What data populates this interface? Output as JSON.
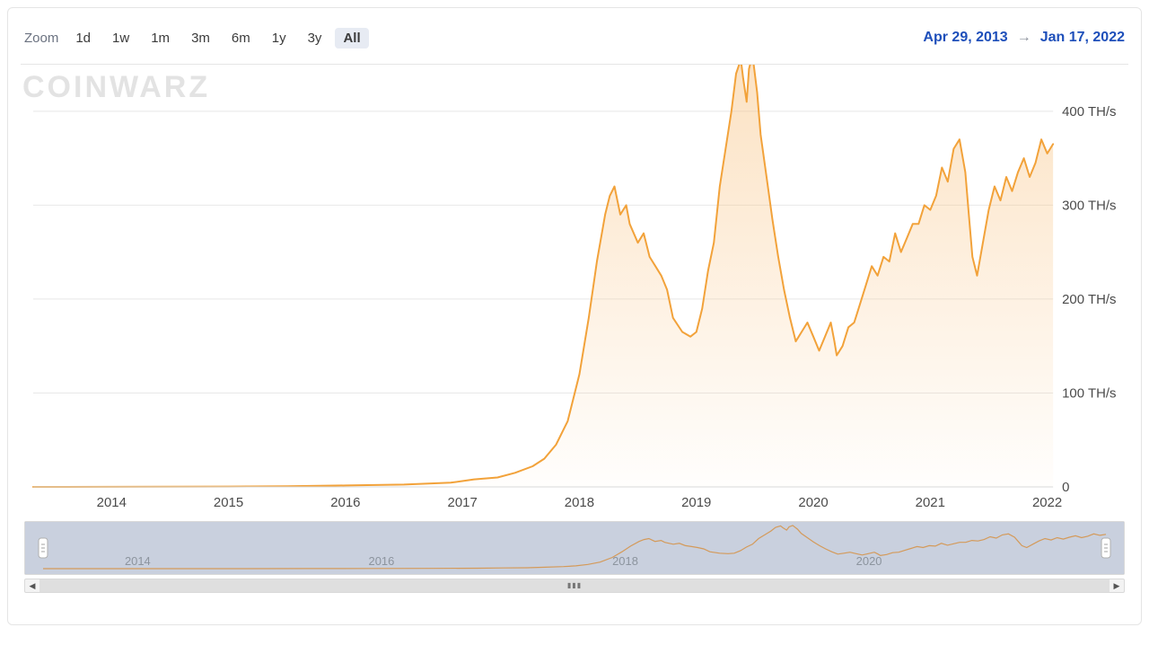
{
  "toolbar": {
    "zoom_label": "Zoom",
    "range_buttons": [
      {
        "label": "1d",
        "active": false
      },
      {
        "label": "1w",
        "active": false
      },
      {
        "label": "1m",
        "active": false
      },
      {
        "label": "3m",
        "active": false
      },
      {
        "label": "6m",
        "active": false
      },
      {
        "label": "1y",
        "active": false
      },
      {
        "label": "3y",
        "active": false
      },
      {
        "label": "All",
        "active": true
      }
    ],
    "date_from": "Apr 29, 2013",
    "date_arrow": "→",
    "date_to": "Jan 17, 2022"
  },
  "watermark": "COINWARZ",
  "chart": {
    "type": "area",
    "line_color": "#f2a23a",
    "area_gradient_top": "rgba(248,190,120,0.45)",
    "area_gradient_bottom": "rgba(248,190,120,0.02)",
    "grid_color": "#e8e8e8",
    "background_color": "#ffffff",
    "y_unit": " TH/s",
    "xlim": [
      2013.33,
      2022.05
    ],
    "ylim": [
      0,
      440
    ],
    "y_ticks": [
      0,
      100,
      200,
      300,
      400
    ],
    "x_ticks": [
      2014,
      2015,
      2016,
      2017,
      2018,
      2019,
      2020,
      2021,
      2022
    ],
    "series": [
      [
        2013.33,
        0.01
      ],
      [
        2013.6,
        0.02
      ],
      [
        2014.0,
        0.1
      ],
      [
        2014.5,
        0.2
      ],
      [
        2015.0,
        0.4
      ],
      [
        2015.5,
        0.8
      ],
      [
        2016.0,
        1.5
      ],
      [
        2016.5,
        2.5
      ],
      [
        2016.9,
        4.5
      ],
      [
        2017.1,
        8
      ],
      [
        2017.3,
        10
      ],
      [
        2017.45,
        15
      ],
      [
        2017.6,
        22
      ],
      [
        2017.7,
        30
      ],
      [
        2017.8,
        45
      ],
      [
        2017.9,
        70
      ],
      [
        2018.0,
        120
      ],
      [
        2018.08,
        180
      ],
      [
        2018.15,
        240
      ],
      [
        2018.22,
        290
      ],
      [
        2018.26,
        310
      ],
      [
        2018.3,
        320
      ],
      [
        2018.35,
        290
      ],
      [
        2018.4,
        300
      ],
      [
        2018.43,
        280
      ],
      [
        2018.5,
        260
      ],
      [
        2018.55,
        270
      ],
      [
        2018.6,
        245
      ],
      [
        2018.65,
        235
      ],
      [
        2018.7,
        225
      ],
      [
        2018.75,
        210
      ],
      [
        2018.8,
        180
      ],
      [
        2018.88,
        165
      ],
      [
        2018.95,
        160
      ],
      [
        2019.0,
        165
      ],
      [
        2019.05,
        190
      ],
      [
        2019.1,
        230
      ],
      [
        2019.15,
        260
      ],
      [
        2019.2,
        320
      ],
      [
        2019.25,
        360
      ],
      [
        2019.3,
        400
      ],
      [
        2019.34,
        440
      ],
      [
        2019.38,
        455
      ],
      [
        2019.4,
        435
      ],
      [
        2019.43,
        410
      ],
      [
        2019.45,
        445
      ],
      [
        2019.48,
        460
      ],
      [
        2019.52,
        420
      ],
      [
        2019.55,
        375
      ],
      [
        2019.6,
        330
      ],
      [
        2019.65,
        285
      ],
      [
        2019.7,
        245
      ],
      [
        2019.75,
        210
      ],
      [
        2019.8,
        180
      ],
      [
        2019.85,
        155
      ],
      [
        2019.9,
        165
      ],
      [
        2019.95,
        175
      ],
      [
        2020.0,
        160
      ],
      [
        2020.05,
        145
      ],
      [
        2020.1,
        160
      ],
      [
        2020.15,
        175
      ],
      [
        2020.18,
        155
      ],
      [
        2020.2,
        140
      ],
      [
        2020.25,
        150
      ],
      [
        2020.3,
        170
      ],
      [
        2020.35,
        175
      ],
      [
        2020.4,
        195
      ],
      [
        2020.45,
        215
      ],
      [
        2020.5,
        235
      ],
      [
        2020.55,
        225
      ],
      [
        2020.6,
        245
      ],
      [
        2020.65,
        240
      ],
      [
        2020.7,
        270
      ],
      [
        2020.75,
        250
      ],
      [
        2020.8,
        265
      ],
      [
        2020.85,
        280
      ],
      [
        2020.9,
        280
      ],
      [
        2020.95,
        300
      ],
      [
        2021.0,
        295
      ],
      [
        2021.05,
        310
      ],
      [
        2021.1,
        340
      ],
      [
        2021.15,
        325
      ],
      [
        2021.2,
        360
      ],
      [
        2021.25,
        370
      ],
      [
        2021.3,
        335
      ],
      [
        2021.33,
        290
      ],
      [
        2021.36,
        245
      ],
      [
        2021.4,
        225
      ],
      [
        2021.45,
        260
      ],
      [
        2021.5,
        295
      ],
      [
        2021.55,
        320
      ],
      [
        2021.6,
        305
      ],
      [
        2021.65,
        330
      ],
      [
        2021.7,
        315
      ],
      [
        2021.75,
        335
      ],
      [
        2021.8,
        350
      ],
      [
        2021.85,
        330
      ],
      [
        2021.9,
        345
      ],
      [
        2021.95,
        370
      ],
      [
        2022.0,
        355
      ],
      [
        2022.05,
        365
      ]
    ]
  },
  "navigator": {
    "line_color": "#d49a5a",
    "mask_color": "rgba(120,140,180,0.35)",
    "x_ticks": [
      2014,
      2016,
      2018,
      2020
    ],
    "handle_fill": "#ffffff",
    "handle_stroke": "#b0b0b0"
  }
}
